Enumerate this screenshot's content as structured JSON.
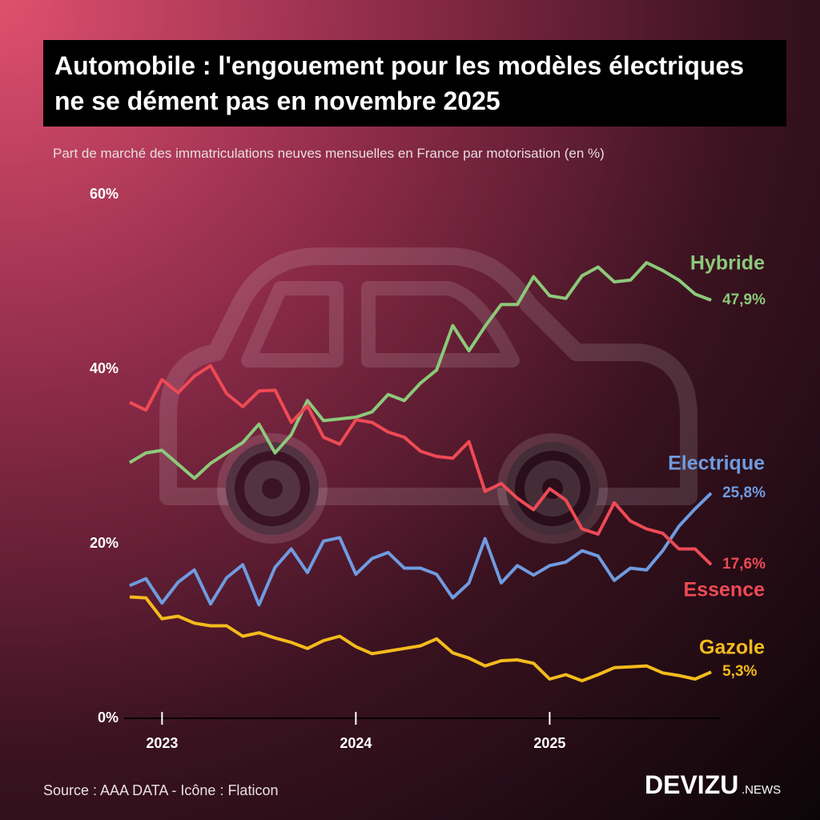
{
  "chart_data": {
    "type": "line",
    "title": "Automobile : l'engouement pour les modèles électriques ne se dément pas en novembre 2025",
    "subtitle": "Part de marché des immatriculations neuves mensuelles en France par motorisation (en %)",
    "source": "Source : AAA DATA - Icône : Flaticon",
    "brand": "DEVIZU",
    "brand_suffix": ".NEWS",
    "categories": [
      null,
      null,
      "2023",
      null,
      null,
      null,
      null,
      null,
      null,
      null,
      null,
      null,
      null,
      null,
      "2024",
      null,
      null,
      null,
      null,
      null,
      null,
      null,
      null,
      null,
      null,
      null,
      "2025",
      null,
      null,
      null,
      null,
      null,
      null,
      null,
      null,
      null,
      null
    ],
    "ylim": [
      0,
      60
    ],
    "yticks": [
      {
        "value": 0,
        "label": "0%"
      },
      {
        "value": 20,
        "label": "20%"
      },
      {
        "value": 40,
        "label": "40%"
      },
      {
        "value": 60,
        "label": "60%"
      }
    ],
    "series": [
      {
        "name": "Hybride",
        "color": "#8cc97a",
        "values": [
          29.3,
          30.4,
          30.7,
          29.1,
          27.5,
          29.2,
          30.4,
          31.6,
          33.7,
          30.4,
          32.5,
          36.4,
          34.1,
          34.3,
          34.5,
          35.1,
          37.1,
          36.4,
          38.4,
          39.9,
          45.0,
          42.1,
          44.9,
          47.4,
          47.4,
          50.6,
          48.4,
          48.1,
          50.7,
          51.7,
          50.0,
          50.2,
          52.2,
          51.3,
          50.2,
          48.6,
          47.9
        ],
        "value_labels": [
          null,
          null,
          null,
          null,
          null,
          null,
          null,
          null,
          null,
          null,
          null,
          null,
          null,
          null,
          null,
          null,
          null,
          null,
          null,
          null,
          null,
          null,
          null,
          null,
          null,
          null,
          null,
          null,
          null,
          null,
          null,
          null,
          null,
          null,
          null,
          null,
          "47,9%"
        ]
      },
      {
        "name": "Electrique",
        "color": "#6f9be0",
        "values": [
          15.2,
          16.0,
          13.2,
          15.6,
          17.0,
          13.1,
          16.1,
          17.6,
          13.0,
          17.3,
          19.4,
          16.7,
          20.3,
          20.7,
          16.5,
          18.3,
          19.0,
          17.2,
          17.2,
          16.5,
          13.8,
          15.5,
          20.6,
          15.5,
          17.5,
          16.4,
          17.5,
          17.9,
          19.2,
          18.6,
          15.8,
          17.2,
          17.0,
          19.2,
          22.0,
          24.0,
          25.8
        ],
        "value_labels": [
          null,
          null,
          null,
          null,
          null,
          null,
          null,
          null,
          null,
          null,
          null,
          null,
          null,
          null,
          null,
          null,
          null,
          null,
          null,
          null,
          null,
          null,
          null,
          null,
          null,
          null,
          null,
          null,
          null,
          null,
          null,
          null,
          null,
          null,
          null,
          null,
          "25,8%"
        ]
      },
      {
        "name": "Essence",
        "color": "#ee4a55",
        "values": [
          36.2,
          35.3,
          38.8,
          37.3,
          39.2,
          40.4,
          37.2,
          35.7,
          37.5,
          37.6,
          33.9,
          35.8,
          32.2,
          31.4,
          34.2,
          33.9,
          32.8,
          32.2,
          30.6,
          30.0,
          29.8,
          31.7,
          26.0,
          26.9,
          25.2,
          23.9,
          26.3,
          25.0,
          21.7,
          21.1,
          24.7,
          22.6,
          21.7,
          21.2,
          19.4,
          19.4,
          17.6
        ],
        "value_labels": [
          null,
          null,
          null,
          null,
          null,
          null,
          null,
          null,
          null,
          null,
          null,
          null,
          null,
          null,
          null,
          null,
          null,
          null,
          null,
          null,
          null,
          null,
          null,
          null,
          null,
          null,
          null,
          null,
          null,
          null,
          null,
          null,
          null,
          null,
          null,
          null,
          "17,6%"
        ]
      },
      {
        "name": "Gazole",
        "color": "#f4bb1c",
        "values": [
          13.9,
          13.8,
          11.4,
          11.7,
          10.9,
          10.6,
          10.6,
          9.4,
          9.8,
          9.2,
          8.7,
          8.0,
          8.9,
          9.4,
          8.2,
          7.4,
          7.7,
          8.0,
          8.3,
          9.1,
          7.5,
          6.9,
          6.0,
          6.6,
          6.7,
          6.3,
          4.5,
          5.0,
          4.3,
          5.0,
          5.8,
          5.9,
          6.0,
          5.2,
          4.9,
          4.5,
          5.3
        ],
        "value_labels": [
          null,
          null,
          null,
          null,
          null,
          null,
          null,
          null,
          null,
          null,
          null,
          null,
          null,
          null,
          null,
          null,
          null,
          null,
          null,
          null,
          null,
          null,
          null,
          null,
          null,
          null,
          null,
          null,
          null,
          null,
          null,
          null,
          null,
          null,
          null,
          null,
          "5,3%"
        ]
      }
    ]
  }
}
